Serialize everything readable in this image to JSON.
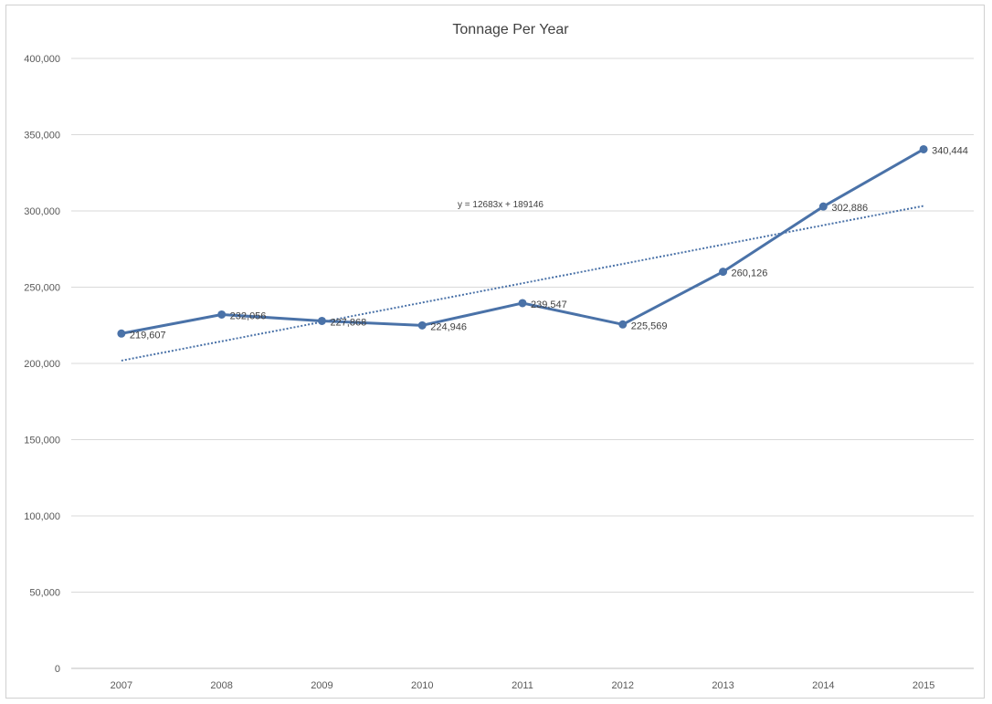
{
  "chart_data": {
    "type": "line",
    "title": "Tonnage Per Year",
    "xlabel": "",
    "ylabel": "",
    "categories": [
      "2007",
      "2008",
      "2009",
      "2010",
      "2011",
      "2012",
      "2013",
      "2014",
      "2015"
    ],
    "series": [
      {
        "values": [
          219607,
          232056,
          227868,
          224946,
          239547,
          225569,
          260126,
          302886,
          340444
        ],
        "labels": [
          "219,607",
          "232,056",
          "227,868",
          "224,946",
          "239,547",
          "225,569",
          "260,126",
          "302,886",
          "340,444"
        ],
        "color": "#4a72a8"
      }
    ],
    "trendline": {
      "type": "linear",
      "slope": 12683,
      "intercept": 189146,
      "equation": "y = 12683x + 189146",
      "color": "#4a72a8",
      "style": "dotted"
    },
    "ylim": [
      0,
      400000
    ],
    "yticks": [
      0,
      50000,
      100000,
      150000,
      200000,
      250000,
      300000,
      350000,
      400000
    ],
    "ytick_labels": [
      "0",
      "50,000",
      "100,000",
      "150,000",
      "200,000",
      "250,000",
      "300,000",
      "350,000",
      "400,000"
    ],
    "grid": true,
    "legend": "none"
  }
}
